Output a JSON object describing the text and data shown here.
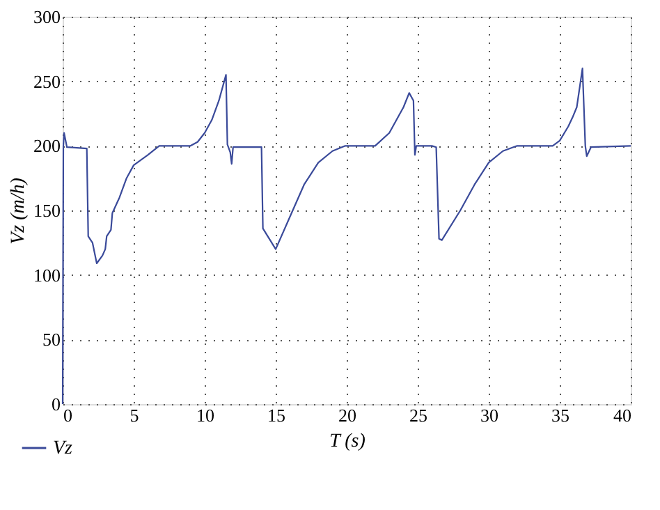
{
  "chart_data": {
    "type": "line",
    "xlabel": "T (s)",
    "ylabel": "Vz (m/h)",
    "xlim": [
      0,
      40
    ],
    "xticks": [
      0,
      5,
      10,
      15,
      20,
      25,
      30,
      35,
      40
    ],
    "ylim": [
      0,
      300
    ],
    "yticks": [
      0,
      50,
      100,
      150,
      200,
      250,
      300
    ],
    "grid": true,
    "legend": "bottom left",
    "line_style": "solid",
    "marker": "none",
    "x": [
      0,
      0.05,
      0.1,
      0.3,
      1.7,
      1.8,
      2.1,
      2.4,
      2.8,
      3.0,
      3.1,
      3.4,
      3.5,
      4,
      4.5,
      5,
      6,
      6.8,
      9,
      9.5,
      10,
      10.5,
      11,
      11.5,
      11.6,
      11.8,
      11.9,
      12,
      14,
      14.1,
      15,
      16,
      17,
      18,
      19,
      19.9,
      22,
      23,
      24,
      24.4,
      24.7,
      24.8,
      24.9,
      26,
      26.3,
      26.5,
      26.7,
      28,
      29,
      30,
      31,
      32,
      34.5,
      35,
      35.6,
      35.9,
      36.2,
      36.6,
      36.8,
      36.9,
      37.2,
      40
    ],
    "series": [
      {
        "name": "Vz",
        "color": "#3a4a9a",
        "values": [
          0,
          200,
          210,
          199,
          198,
          130,
          125,
          109,
          115,
          120,
          130,
          135,
          148,
          160,
          175,
          185,
          193,
          200,
          200,
          203,
          210,
          220,
          235,
          255,
          201,
          195,
          186,
          199,
          199,
          136,
          120,
          145,
          170,
          187,
          196,
          200,
          200,
          210,
          230,
          241,
          235,
          193,
          200,
          200,
          199,
          128,
          127,
          150,
          170,
          187,
          196,
          200,
          200,
          204,
          215,
          222,
          230,
          260,
          200,
          192,
          199,
          200
        ]
      }
    ]
  }
}
